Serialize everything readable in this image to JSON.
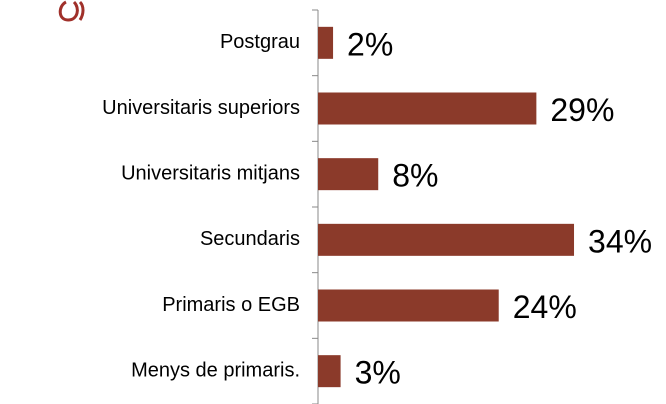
{
  "chart_data": {
    "type": "bar",
    "orientation": "horizontal",
    "categories": [
      "Postgrau",
      "Universitaris superiors",
      "Universitaris mitjans",
      "Secundaris",
      "Primaris o EGB",
      "Menys de primaris."
    ],
    "values": [
      2,
      29,
      8,
      34,
      24,
      3
    ],
    "value_labels": [
      "2%",
      "29%",
      "8%",
      "34%",
      "24%",
      "3%"
    ],
    "color": "#8b3a2a"
  }
}
